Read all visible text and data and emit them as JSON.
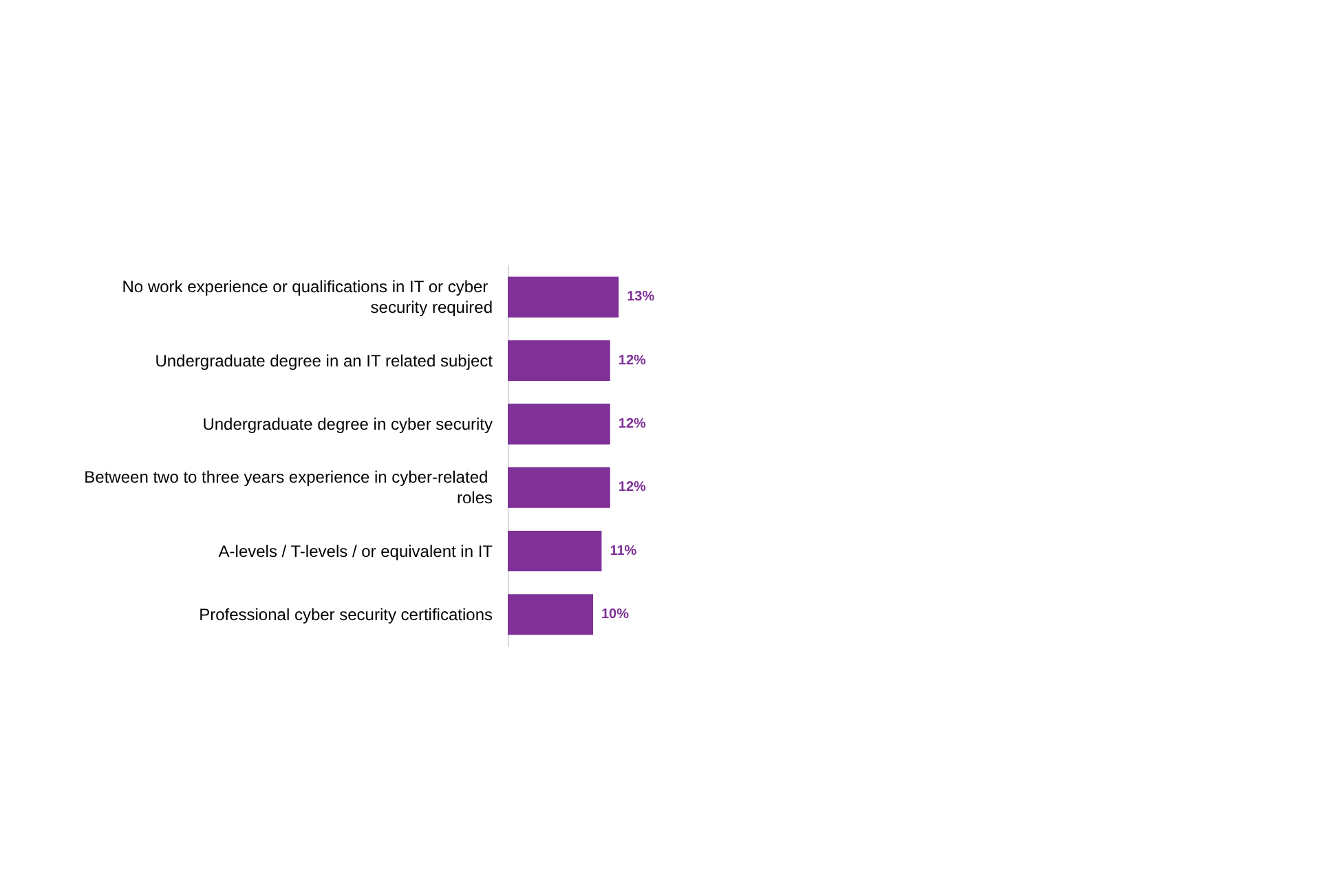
{
  "chart_data": {
    "type": "bar",
    "orientation": "horizontal",
    "categories": [
      "No work experience or qualifications in IT or cyber security required",
      "Undergraduate degree in an IT related subject",
      "Undergraduate degree in cyber security",
      "Between two to three years experience in cyber-related roles",
      "A-levels / T-levels / or equivalent in IT",
      "Professional cyber security certifications"
    ],
    "values": [
      13,
      12,
      12,
      12,
      11,
      10
    ],
    "color": "#7f3197",
    "value_labels": [
      "13%",
      "12%",
      "12%",
      "12%",
      "11%",
      "10%"
    ]
  }
}
